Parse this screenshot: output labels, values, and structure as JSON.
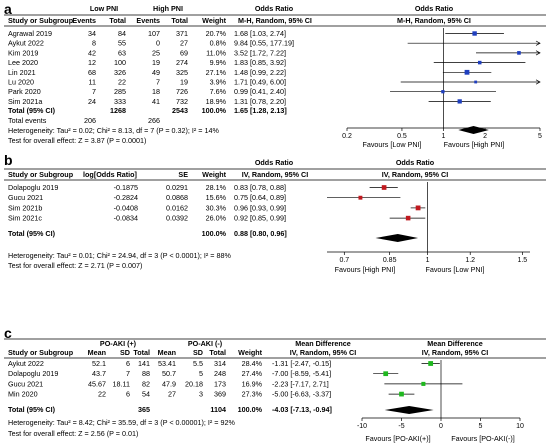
{
  "chart_data": [
    {
      "type": "forest",
      "panel_label": "a",
      "headers": {
        "study": "Study or Subgroup",
        "group1": "Low PNI",
        "group2": "High PNI",
        "events": "Events",
        "total": "Total",
        "weight": "Weight",
        "effect_top": "Odds Ratio",
        "effect_col": "M-H, Random, 95% CI",
        "plot_top": "Odds Ratio",
        "plot_sub": "M-H, Random, 95% CI"
      },
      "rows": [
        {
          "study": "Agrawal 2019",
          "e1": "34",
          "n1": "84",
          "e2": "107",
          "n2": "371",
          "weight": "20.7%",
          "ci_text": "1.68 [1.03, 2.74]",
          "est": 1.68,
          "lo": 1.03,
          "hi": 2.74
        },
        {
          "study": "Aykut 2022",
          "e1": "8",
          "n1": "55",
          "e2": "0",
          "n2": "27",
          "weight": "0.8%",
          "ci_text": "9.84 [0.55, 177.19]",
          "est": 9.84,
          "lo": 0.55,
          "hi": 177.19
        },
        {
          "study": "Kim 2019",
          "e1": "42",
          "n1": "63",
          "e2": "25",
          "n2": "69",
          "weight": "11.0%",
          "ci_text": "3.52 [1.72, 7.22]",
          "est": 3.52,
          "lo": 1.72,
          "hi": 7.22
        },
        {
          "study": "Lee 2020",
          "e1": "12",
          "n1": "100",
          "e2": "19",
          "n2": "274",
          "weight": "9.9%",
          "ci_text": "1.83 [0.85, 3.92]",
          "est": 1.83,
          "lo": 0.85,
          "hi": 3.92
        },
        {
          "study": "Lin 2021",
          "e1": "68",
          "n1": "326",
          "e2": "49",
          "n2": "325",
          "weight": "27.1%",
          "ci_text": "1.48 [0.99, 2.22]",
          "est": 1.48,
          "lo": 0.99,
          "hi": 2.22
        },
        {
          "study": "Lu 2020",
          "e1": "11",
          "n1": "22",
          "e2": "7",
          "n2": "19",
          "weight": "3.9%",
          "ci_text": "1.71 [0.49, 6.00]",
          "est": 1.71,
          "lo": 0.49,
          "hi": 6.0
        },
        {
          "study": "Park 2020",
          "e1": "7",
          "n1": "285",
          "e2": "18",
          "n2": "726",
          "weight": "7.6%",
          "ci_text": "0.99 [0.41, 2.40]",
          "est": 0.99,
          "lo": 0.41,
          "hi": 2.4
        },
        {
          "study": "Sim 2021a",
          "e1": "24",
          "n1": "333",
          "e2": "41",
          "n2": "732",
          "weight": "18.9%",
          "ci_text": "1.31 [0.78, 2.20]",
          "est": 1.31,
          "lo": 0.78,
          "hi": 2.2
        }
      ],
      "total": {
        "label": "Total (95% CI)",
        "n1": "1268",
        "n2": "2543",
        "weight": "100.0%",
        "ci_text": "1.65 [1.28, 2.13]",
        "est": 1.65,
        "lo": 1.28,
        "hi": 2.13
      },
      "total_events": {
        "label": "Total events",
        "e1": "206",
        "e2": "266"
      },
      "heterogeneity": "Heterogeneity: Tau² = 0.02; Chi² = 8.13, df = 7 (P = 0.32); I² = 14%",
      "overall": "Test for overall effect: Z = 3.87 (P = 0.0001)",
      "scale": "log",
      "xlim": [
        0.2,
        5
      ],
      "ticks": [
        0.2,
        0.5,
        1,
        2,
        5
      ],
      "tick_labels": [
        "0.2",
        "0.5",
        "1",
        "2",
        "5"
      ],
      "favours_left": "Favours [Low PNI]",
      "favours_right": "Favours [High PNI]",
      "marker_color": "#1f3fbf"
    },
    {
      "type": "forest",
      "panel_label": "b",
      "headers": {
        "study": "Study or Subgroup",
        "log_or": "log[Odds Ratio]",
        "se": "SE",
        "weight": "Weight",
        "effect_top": "Odds Ratio",
        "effect_col": "IV, Random, 95% CI",
        "plot_top": "Odds Ratio",
        "plot_sub": "IV, Random, 95% CI"
      },
      "rows": [
        {
          "study": "Dolapoglu 2019",
          "log_or": "-0.1875",
          "se": "0.0291",
          "weight": "28.1%",
          "ci_text": "0.83 [0.78, 0.88]",
          "est": 0.83,
          "lo": 0.78,
          "hi": 0.88
        },
        {
          "study": "Gucu 2021",
          "log_or": "-0.2824",
          "se": "0.0868",
          "weight": "15.6%",
          "ci_text": "0.75 [0.64, 0.89]",
          "est": 0.75,
          "lo": 0.64,
          "hi": 0.89
        },
        {
          "study": "Sim 2021b",
          "log_or": "-0.0408",
          "se": "0.0162",
          "weight": "30.3%",
          "ci_text": "0.96 [0.93, 0.99]",
          "est": 0.96,
          "lo": 0.93,
          "hi": 0.99
        },
        {
          "study": "Sim 2021c",
          "log_or": "-0.0834",
          "se": "0.0392",
          "weight": "26.0%",
          "ci_text": "0.92 [0.85, 0.99]",
          "est": 0.92,
          "lo": 0.85,
          "hi": 0.99
        }
      ],
      "total": {
        "label": "Total (95% CI)",
        "weight": "100.0%",
        "ci_text": "0.88 [0.80, 0.96]",
        "est": 0.88,
        "lo": 0.8,
        "hi": 0.96
      },
      "heterogeneity": "Heterogeneity: Tau² = 0.01; Chi² = 24.94, df = 3 (P < 0.0001); I² = 88%",
      "overall": "Test for overall effect: Z = 2.71 (P = 0.007)",
      "scale": "log",
      "xlim": [
        0.65,
        1.55
      ],
      "ticks": [
        0.7,
        0.85,
        1,
        1.2,
        1.5
      ],
      "tick_labels": [
        "0.7",
        "0.85",
        "1",
        "1.2",
        "1.5"
      ],
      "favours_left": "Favours [High PNI]",
      "favours_right": "Favours [Low PNI]",
      "marker_color": "#c0191f"
    },
    {
      "type": "forest",
      "panel_label": "c",
      "headers": {
        "study": "Study or Subgroup",
        "group1": "PO-AKI (+)",
        "group2": "PO-AKI (-)",
        "mean": "Mean",
        "sd": "SD",
        "total": "Total",
        "weight": "Weight",
        "effect_top": "Mean Difference",
        "effect_col": "IV, Random, 95% CI",
        "plot_top": "Mean Difference",
        "plot_sub": "IV, Random, 95% CI"
      },
      "rows": [
        {
          "study": "Aykut 2022",
          "m1": "52.1",
          "sd1": "6",
          "n1": "141",
          "m2": "53.41",
          "sd2": "5.5",
          "n2": "314",
          "weight": "28.4%",
          "ci_text": "-1.31 [-2.47, -0.15]",
          "est": -1.31,
          "lo": -2.47,
          "hi": -0.15
        },
        {
          "study": "Dolapoglu 2019",
          "m1": "43.7",
          "sd1": "7",
          "n1": "88",
          "m2": "50.7",
          "sd2": "5",
          "n2": "248",
          "weight": "27.4%",
          "ci_text": "-7.00 [-8.59, -5.41]",
          "est": -7.0,
          "lo": -8.59,
          "hi": -5.41
        },
        {
          "study": "Gucu 2021",
          "m1": "45.67",
          "sd1": "18.11",
          "n1": "82",
          "m2": "47.9",
          "sd2": "20.18",
          "n2": "173",
          "weight": "16.9%",
          "ci_text": "-2.23 [-7.17, 2.71]",
          "est": -2.23,
          "lo": -7.17,
          "hi": 2.71
        },
        {
          "study": "Min 2020",
          "m1": "22",
          "sd1": "6",
          "n1": "54",
          "m2": "27",
          "sd2": "3",
          "n2": "369",
          "weight": "27.3%",
          "ci_text": "-5.00 [-6.63, -3.37]",
          "est": -5.0,
          "lo": -6.63,
          "hi": -3.37
        }
      ],
      "total": {
        "label": "Total (95% CI)",
        "n1": "365",
        "n2": "1104",
        "weight": "100.0%",
        "ci_text": "-4.03 [-7.13, -0.94]",
        "est": -4.03,
        "lo": -7.13,
        "hi": -0.94
      },
      "heterogeneity": "Heterogeneity: Tau² = 8.42; Chi² = 35.59, df = 3 (P < 0.00001); I² = 92%",
      "overall": "Test for overall effect: Z = 2.56 (P = 0.01)",
      "scale": "linear",
      "xlim": [
        -10,
        10
      ],
      "ticks": [
        -10,
        -5,
        0,
        5,
        10
      ],
      "tick_labels": [
        "-10",
        "-5",
        "0",
        "5",
        "10"
      ],
      "favours_left": "Favours [PO-AKI(+)]",
      "favours_right": "Favours [PO-AKI(-)]",
      "marker_color": "#1fb81f"
    }
  ]
}
